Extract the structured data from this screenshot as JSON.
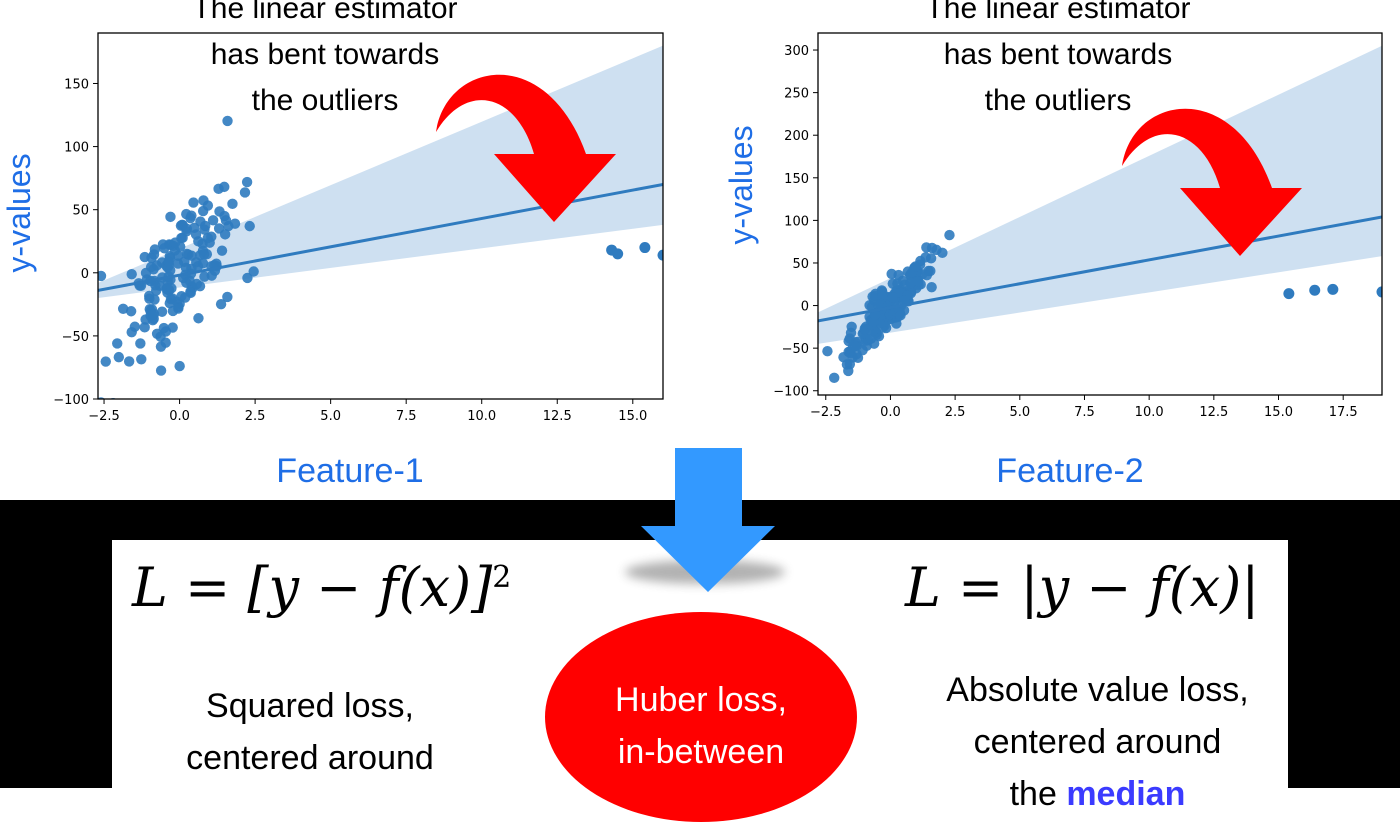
{
  "chart_data": [
    {
      "type": "scatter",
      "ylabel": "y-values",
      "xlabel": "Feature-1",
      "annotation": [
        "The linear estimator",
        "has bent towards",
        "the outliers"
      ],
      "xlim": [
        -2.7,
        16.0
      ],
      "ylim": [
        -100,
        190
      ],
      "xticks": [
        "−2.5",
        "0.0",
        "2.5",
        "5.0",
        "7.5",
        "10.0",
        "12.5",
        "15.0"
      ],
      "xtick_values": [
        -2.5,
        0,
        2.5,
        5,
        7.5,
        10,
        12.5,
        15
      ],
      "yticks": [
        "−100",
        "−50",
        "0",
        "50",
        "100",
        "150"
      ],
      "ytick_values": [
        -100,
        -50,
        0,
        50,
        100,
        150
      ],
      "regression_line": {
        "x": [
          -2.7,
          16.0
        ],
        "y": [
          -14,
          70
        ]
      },
      "confidence_band": {
        "x": [
          -2.7,
          16.0
        ],
        "upper": [
          -8,
          180
        ],
        "lower": [
          -20,
          38
        ]
      },
      "outliers": [
        [
          14.3,
          18
        ],
        [
          14.5,
          15
        ],
        [
          15.4,
          20
        ],
        [
          16.0,
          14
        ]
      ],
      "colors": {
        "points": "#2f7bbf",
        "line": "#2f7bbf",
        "band": "#c6dbef"
      }
    },
    {
      "type": "scatter",
      "ylabel": "y-values",
      "xlabel": "Feature-2",
      "annotation": [
        "The linear estimator",
        "has bent towards",
        "the outliers"
      ],
      "xlim": [
        -2.8,
        19.0
      ],
      "ylim": [
        -105,
        320
      ],
      "xticks": [
        "−2.5",
        "0.0",
        "2.5",
        "5.0",
        "7.5",
        "10.0",
        "12.5",
        "15.0",
        "17.5"
      ],
      "xtick_values": [
        -2.5,
        0,
        2.5,
        5,
        7.5,
        10,
        12.5,
        15,
        17.5
      ],
      "yticks": [
        "−100",
        "−50",
        "0",
        "50",
        "100",
        "150",
        "200",
        "250",
        "300"
      ],
      "ytick_values": [
        -100,
        -50,
        0,
        50,
        100,
        150,
        200,
        250,
        300
      ],
      "regression_line": {
        "x": [
          -2.8,
          19.0
        ],
        "y": [
          -18,
          104
        ]
      },
      "confidence_band": {
        "x": [
          -2.8,
          19.0
        ],
        "upper": [
          -8,
          305
        ],
        "lower": [
          -45,
          58
        ]
      },
      "outliers": [
        [
          15.4,
          14
        ],
        [
          16.4,
          18
        ],
        [
          17.1,
          19
        ],
        [
          19.0,
          16
        ]
      ],
      "colors": {
        "points": "#2f7bbf",
        "line": "#2f7bbf",
        "band": "#c6dbef"
      }
    }
  ],
  "bottom": {
    "left_formula_main": "L = [y − f(x)]",
    "left_formula_power": "2",
    "right_formula": "L = |y − f(x)|",
    "left_desc": [
      "Squared loss,",
      "centered around"
    ],
    "right_desc_lines": [
      "Absolute value loss,",
      "centered around"
    ],
    "right_desc_prefix": "the ",
    "right_desc_emph": "median",
    "huber_lines": [
      "Huber loss,",
      "in-between"
    ]
  },
  "arrow_colors": {
    "down_arrow": "#3399ff",
    "curved_arrow": "#ff0000"
  }
}
